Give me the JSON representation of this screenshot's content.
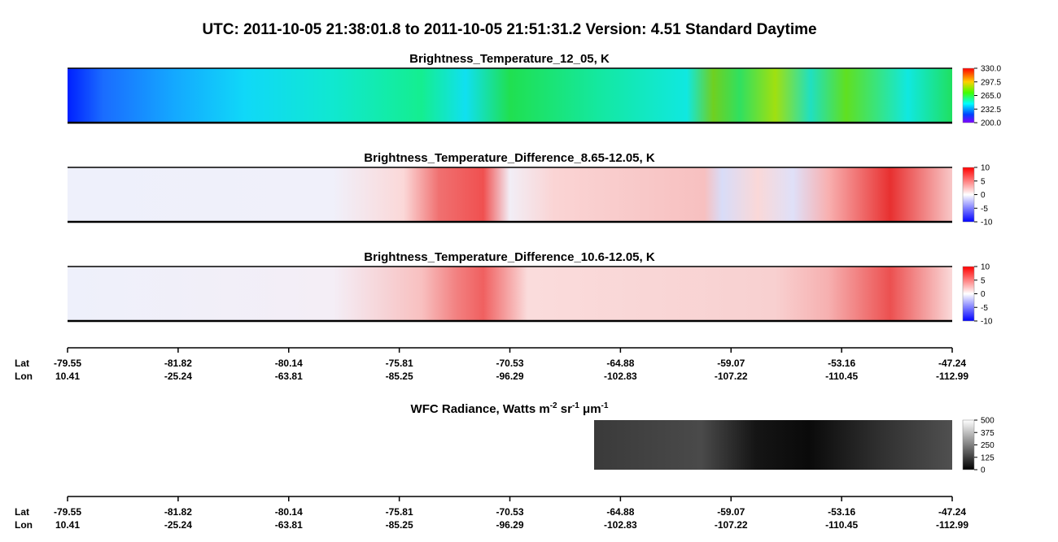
{
  "title": "UTC:  2011-10-05   21:38:01.8  to  2011-10-05   21:51:31.2    Version: 4.51  Standard Daytime",
  "panels": [
    {
      "title": "Brightness_Temperature_12_05, K",
      "colorbar_ticks": [
        {
          "value": 330,
          "label": "330.0"
        },
        {
          "value": 297.5,
          "label": "297.5"
        },
        {
          "value": 265,
          "label": "265.0"
        },
        {
          "value": 232.5,
          "label": "232.5"
        },
        {
          "value": 200,
          "label": "200.0"
        }
      ]
    },
    {
      "title": "Brightness_Temperature_Difference_8.65-12.05, K",
      "colorbar_ticks": [
        10,
        5,
        0,
        -5,
        -10
      ]
    },
    {
      "title": "Brightness_Temperature_Difference_10.6-12.05, K",
      "colorbar_ticks": [
        10,
        5,
        0,
        -5,
        -10
      ]
    }
  ],
  "wfc": {
    "title_parts": [
      "WFC Radiance, Watts m",
      "-2",
      " sr",
      "-1",
      " μm",
      "-1"
    ],
    "colorbar_ticks": [
      500,
      375,
      250,
      125,
      0
    ]
  },
  "axis": {
    "lat_label": "Lat",
    "lon_label": "Lon",
    "lat": [
      "-79.55",
      "-81.82",
      "-80.14",
      "-75.81",
      "-70.53",
      "-64.88",
      "-59.07",
      "-53.16",
      "-47.24"
    ],
    "lon": [
      "10.41",
      "-25.24",
      "-63.81",
      "-85.25",
      "-96.29",
      "-102.83",
      "-107.22",
      "-110.45",
      "-112.99"
    ]
  }
}
